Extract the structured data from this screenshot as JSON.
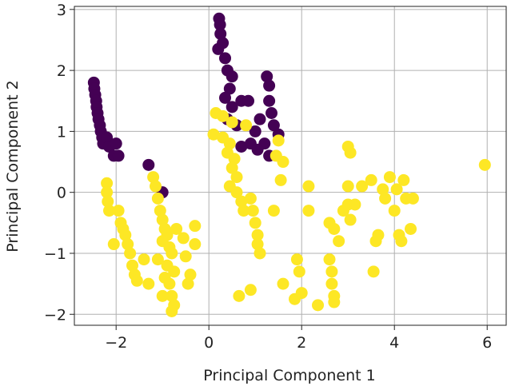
{
  "chart_data": {
    "type": "scatter",
    "xlabel": "Principal Component 1",
    "ylabel": "Principal Component 2",
    "xlim": [
      -2.9,
      6.41
    ],
    "ylim": [
      -2.18,
      3.05
    ],
    "xticks": [
      {
        "value": -2,
        "label": "−2"
      },
      0,
      2,
      4,
      6
    ],
    "yticks": [
      {
        "value": -2,
        "label": "−2"
      },
      {
        "value": -1,
        "label": "−1"
      },
      0,
      1,
      2,
      3
    ],
    "grid": true,
    "series": [
      {
        "color": "#440154",
        "x": [
          -2.48,
          -2.47,
          -2.45,
          -2.43,
          -2.42,
          -2.4,
          -2.38,
          -2.35,
          -2.33,
          -2.3,
          -2.28,
          -2.2,
          -2.15,
          -2.0,
          -2.05,
          -1.95,
          -1.3,
          -1.0,
          0.22,
          0.24,
          0.25,
          0.2,
          0.3,
          0.35,
          0.4,
          0.5,
          0.45,
          0.35,
          0.5,
          0.4,
          0.7,
          0.85,
          1.25,
          1.3,
          1.3,
          1.35,
          1.1,
          1.4,
          1.5,
          1.2,
          0.9,
          0.7,
          1.05,
          1.3,
          0.6,
          1.0
        ],
        "y": [
          1.8,
          1.7,
          1.6,
          1.5,
          1.4,
          1.3,
          1.2,
          1.1,
          1.0,
          0.9,
          0.8,
          0.9,
          0.75,
          0.8,
          0.6,
          0.6,
          0.45,
          0.0,
          2.85,
          2.75,
          2.6,
          2.35,
          2.45,
          2.2,
          2.0,
          1.9,
          1.7,
          1.55,
          1.4,
          1.2,
          1.5,
          1.5,
          1.9,
          1.75,
          1.5,
          1.3,
          1.2,
          1.1,
          0.95,
          0.8,
          0.8,
          0.75,
          0.7,
          0.6,
          1.1,
          1.0
        ]
      },
      {
        "color": "#fde725",
        "x": [
          -2.2,
          -2.2,
          -2.18,
          -2.15,
          -1.95,
          -1.9,
          -1.85,
          -1.8,
          -1.75,
          -2.05,
          -1.7,
          -1.65,
          -1.6,
          -1.55,
          -1.4,
          -1.3,
          -1.2,
          -1.15,
          -1.1,
          -1.05,
          -1.0,
          -0.95,
          -0.9,
          -1.0,
          -0.85,
          -0.8,
          -1.1,
          -0.9,
          -0.75,
          -0.95,
          -0.85,
          -0.8,
          -0.75,
          -0.8,
          -1.0,
          -0.55,
          -0.5,
          -0.4,
          -0.3,
          -0.3,
          -0.45,
          -0.7,
          0.15,
          0.3,
          0.5,
          0.8,
          0.1,
          0.3,
          0.45,
          0.4,
          0.55,
          0.5,
          0.6,
          0.45,
          0.6,
          0.7,
          0.75,
          0.9,
          0.95,
          1.0,
          1.05,
          1.05,
          1.1,
          1.4,
          1.55,
          1.6,
          1.45,
          1.5,
          0.65,
          0.9,
          1.6,
          1.85,
          1.9,
          1.95,
          2.0,
          2.15,
          2.15,
          2.35,
          2.6,
          2.65,
          2.65,
          2.7,
          2.7,
          2.6,
          2.7,
          2.8,
          2.9,
          3.0,
          3.05,
          3.0,
          3.0,
          3.05,
          3.15,
          3.3,
          3.5,
          3.55,
          3.6,
          3.65,
          3.75,
          3.8,
          3.9,
          4.0,
          4.05,
          4.1,
          4.15,
          4.2,
          4.25,
          4.4,
          4.35,
          5.95
        ],
        "y": [
          0.15,
          0.0,
          -0.15,
          -0.3,
          -0.3,
          -0.5,
          -0.6,
          -0.7,
          -0.85,
          -0.85,
          -1.0,
          -1.2,
          -1.35,
          -1.45,
          -1.1,
          -1.5,
          0.25,
          0.1,
          -0.1,
          -0.3,
          -0.45,
          -0.6,
          -0.7,
          -0.8,
          -0.9,
          -1.0,
          -1.1,
          -1.2,
          -1.3,
          -1.4,
          -1.5,
          -1.7,
          -1.85,
          -1.95,
          -1.7,
          -0.75,
          -1.05,
          -1.35,
          -0.55,
          -0.85,
          -1.5,
          -0.6,
          1.3,
          1.25,
          1.15,
          1.1,
          0.95,
          0.9,
          0.8,
          0.65,
          0.55,
          0.4,
          0.25,
          0.1,
          0.0,
          -0.15,
          -0.3,
          -0.1,
          -0.3,
          -0.5,
          -0.7,
          -0.85,
          -1.0,
          -0.3,
          0.2,
          0.5,
          0.6,
          0.85,
          -1.7,
          -1.6,
          -1.5,
          -1.75,
          -1.1,
          -1.3,
          -1.65,
          0.1,
          -0.3,
          -1.85,
          -1.1,
          -1.3,
          -1.5,
          -1.7,
          -1.8,
          -0.5,
          -0.6,
          -0.8,
          -0.3,
          0.75,
          0.65,
          0.1,
          -0.2,
          -0.45,
          -0.2,
          0.1,
          0.2,
          -1.3,
          -0.8,
          -0.7,
          0.05,
          -0.1,
          0.25,
          -0.3,
          0.05,
          -0.7,
          -0.8,
          0.2,
          -0.1,
          -0.1,
          -0.6,
          0.45
        ]
      }
    ]
  }
}
